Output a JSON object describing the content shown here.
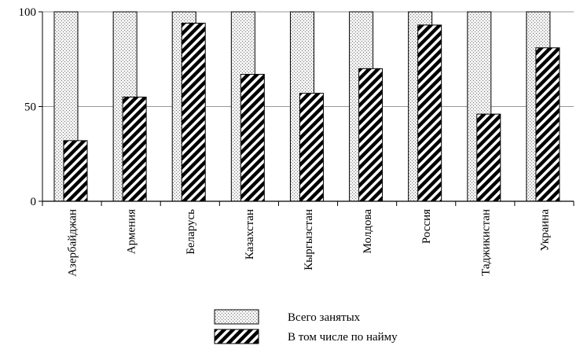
{
  "chart_data": {
    "type": "bar",
    "categories": [
      "Азербайджан",
      "Армения",
      "Беларусь",
      "Казахстан",
      "Кыргызстан",
      "Молдова",
      "Россия",
      "Таджикистан",
      "Украина"
    ],
    "series": [
      {
        "name": "Всего занятых",
        "values": [
          100,
          100,
          100,
          100,
          100,
          100,
          100,
          100,
          100
        ],
        "pattern": "dotted"
      },
      {
        "name": "В том числе по найму",
        "values": [
          32,
          55,
          94,
          67,
          57,
          70,
          93,
          46,
          81
        ],
        "pattern": "hatched"
      }
    ],
    "title": "",
    "xlabel": "",
    "ylabel": "",
    "ylim": [
      0,
      100
    ],
    "yticks": [
      "0",
      "50",
      "100"
    ],
    "grid": true,
    "legend_position": "bottom-center"
  }
}
